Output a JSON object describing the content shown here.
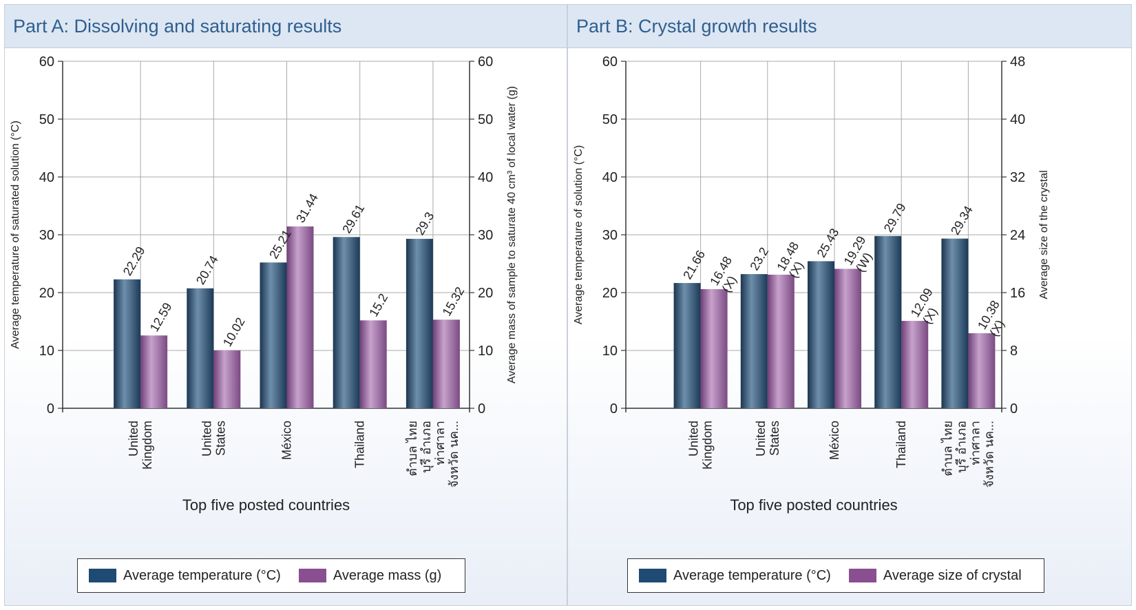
{
  "chart_data": [
    {
      "type": "bar",
      "title": "Part A: Dissolving and saturating results",
      "xlabel": "Top five posted countries",
      "ylabel_left": "Average temperature of saturated solution (°C)",
      "ylabel_right": "Average mass of sample to saturate 40 cm³ of local water (g)",
      "ylim_left": [
        0,
        60
      ],
      "ylim_right": [
        0,
        60
      ],
      "yticks_left": [
        "0",
        "10",
        "20",
        "30",
        "40",
        "50",
        "60"
      ],
      "yticks_right": [
        "0",
        "10",
        "20",
        "30",
        "40",
        "50",
        "60"
      ],
      "categories": [
        [
          "United",
          "Kingdom"
        ],
        [
          "United",
          "States"
        ],
        [
          "México"
        ],
        [
          "Thailand"
        ],
        [
          "ตำบล ไทย",
          "บุรี อำเภอ",
          "ท่าศาลา",
          "จังหวัด นค..."
        ]
      ],
      "series": [
        {
          "name": "Average temperature (°C)",
          "axis": "left",
          "color": "#2b4d6f",
          "values": [
            22.29,
            20.74,
            25.21,
            29.61,
            29.3
          ],
          "labels": [
            [
              "22.29"
            ],
            [
              "20.74"
            ],
            [
              "25.21"
            ],
            [
              "29.61"
            ],
            [
              "29.3"
            ]
          ]
        },
        {
          "name": "Average mass (g)",
          "axis": "right",
          "color": "#8a5a90",
          "values": [
            12.59,
            10.02,
            31.44,
            15.2,
            15.32
          ],
          "labels": [
            [
              "12.59"
            ],
            [
              "10.02"
            ],
            [
              "31.44"
            ],
            [
              "15.2"
            ],
            [
              "15.32"
            ]
          ]
        }
      ],
      "grid": true,
      "legend": "bottom"
    },
    {
      "type": "bar",
      "title": "Part B: Crystal growth results",
      "xlabel": "Top five posted countries",
      "ylabel_left": "Average temperature of solution (°C)",
      "ylabel_right": "Average size of the crystal",
      "ylim_left": [
        0,
        60
      ],
      "ylim_right": [
        0,
        48
      ],
      "yticks_left": [
        "0",
        "10",
        "20",
        "30",
        "40",
        "50",
        "60"
      ],
      "yticks_right": [
        "0",
        "8",
        "16",
        "24",
        "32",
        "40",
        "48"
      ],
      "categories": [
        [
          "United",
          "Kingdom"
        ],
        [
          "United",
          "States"
        ],
        [
          "México"
        ],
        [
          "Thailand"
        ],
        [
          "ตำบล ไทย",
          "บุรี อำเภอ",
          "ท่าศาลา",
          "จังหวัด นค..."
        ]
      ],
      "series": [
        {
          "name": "Average temperature (°C)",
          "axis": "left",
          "color": "#2b4d6f",
          "values": [
            21.66,
            23.2,
            25.43,
            29.79,
            29.34
          ],
          "labels": [
            [
              "21.66"
            ],
            [
              "23.2"
            ],
            [
              "25.43"
            ],
            [
              "29.79"
            ],
            [
              "29.34"
            ]
          ]
        },
        {
          "name": "Average size of crystal",
          "axis": "right",
          "color": "#8a5a90",
          "values": [
            16.48,
            18.48,
            19.29,
            12.09,
            10.38
          ],
          "labels": [
            [
              "16.48",
              "(X)"
            ],
            [
              "18.48",
              "(X)"
            ],
            [
              "19.29",
              "(W)"
            ],
            [
              "12.09",
              "(X)"
            ],
            [
              "10.38",
              "(X)"
            ]
          ]
        }
      ],
      "grid": true,
      "legend": "bottom"
    }
  ]
}
